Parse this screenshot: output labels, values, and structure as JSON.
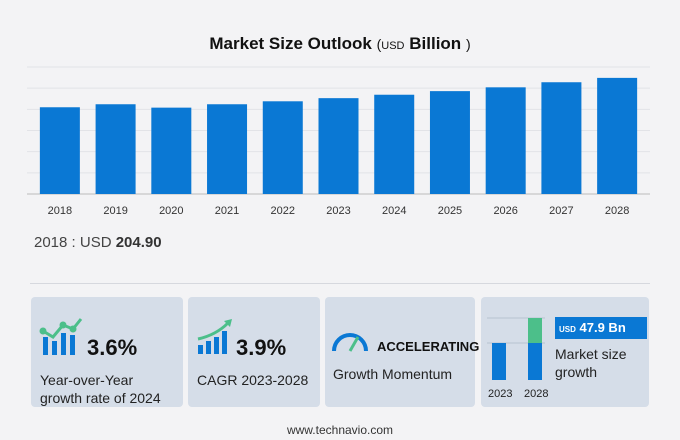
{
  "chart_data": {
    "type": "bar",
    "title": "Market Size Outlook",
    "unit_prefix": "USD",
    "unit": "Billion",
    "categories": [
      "2018",
      "2019",
      "2020",
      "2021",
      "2022",
      "2023",
      "2024",
      "2025",
      "2026",
      "2027",
      "2028"
    ],
    "values": [
      204.9,
      212,
      204,
      212,
      219,
      226.4,
      234.5,
      243,
      252,
      264,
      274.3
    ],
    "ylim": [
      0,
      300
    ],
    "grid": true,
    "bar_color": "#0a78d4"
  },
  "base": {
    "label": "2018 : USD",
    "value": "204.90"
  },
  "cards": [
    {
      "value": "3.6%",
      "label_line1": "Year-over-Year",
      "label_line2": "growth rate of 2024"
    },
    {
      "value": "3.9%",
      "label": "CAGR  2023-2028"
    },
    {
      "value": "ACCELERATING",
      "label": "Growth Momentum"
    },
    {
      "badge_prefix": "USD",
      "badge_value": "47.9 Bn",
      "label_line1": "Market size",
      "label_line2": "growth",
      "year_start": "2023",
      "year_end": "2028"
    }
  ],
  "colors": {
    "accent": "#0a78d4",
    "green": "#4cbf8a"
  },
  "footer": "www.technavio.com"
}
